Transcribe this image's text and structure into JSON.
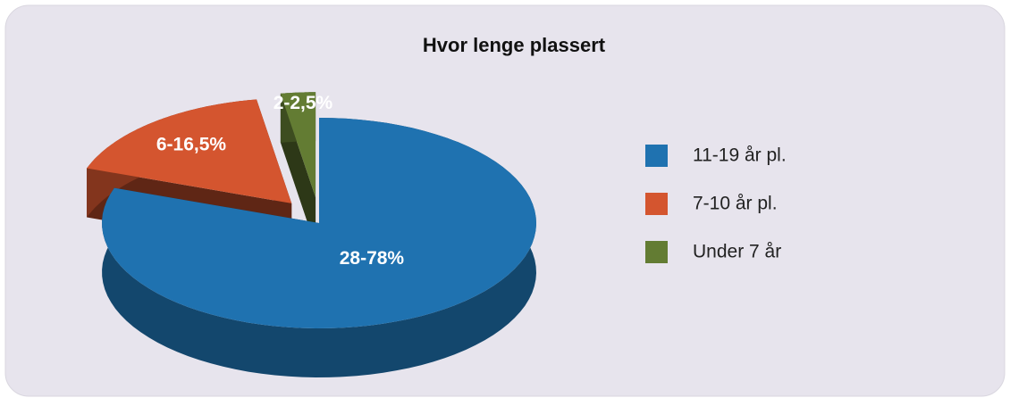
{
  "chart_data": {
    "type": "pie3d",
    "title": "Hvor lenge plassert",
    "categories": [
      "11-19 år pl.",
      "7-10 år pl.",
      "Under 7 år"
    ],
    "values": [
      78,
      16.5,
      2.5
    ],
    "value_labels": [
      "28-78%",
      "6-16,5%",
      "2-2,5%"
    ],
    "colors": [
      "#1f72b0",
      "#d4552f",
      "#637c33"
    ],
    "legend": "right"
  }
}
